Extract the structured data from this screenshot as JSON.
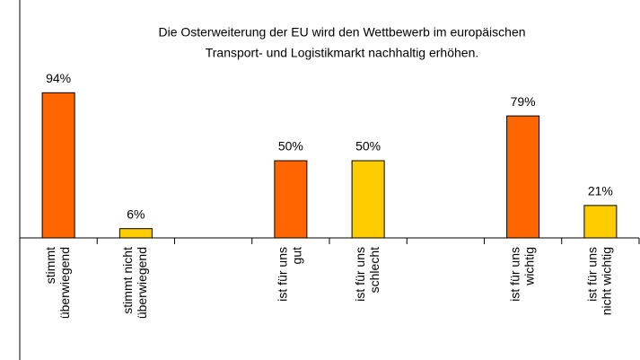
{
  "chart_data": {
    "type": "bar",
    "title": [
      "Die Osterweiterung der EU wird den Wettbewerb im europäischen",
      "Transport- und Logistikmarkt nachhaltig erhöhen."
    ],
    "categories": [
      [
        "stimmt",
        "überwiegend"
      ],
      [
        "stimmt nicht",
        "überwiegend"
      ],
      null,
      [
        "ist für uns",
        "gut"
      ],
      [
        "ist für uns",
        "schlecht"
      ],
      null,
      [
        "ist für uns",
        "wichtig"
      ],
      [
        "ist für uns",
        "nicht wichtig"
      ]
    ],
    "values": [
      94,
      6,
      null,
      50,
      50,
      null,
      79,
      21
    ],
    "value_labels": [
      "94%",
      "6%",
      null,
      "50%",
      "50%",
      null,
      "79%",
      "21%"
    ],
    "colors": [
      "#ff6600",
      "#ffcc00",
      null,
      "#ff6600",
      "#ffcc00",
      null,
      "#ff6600",
      "#ffcc00"
    ],
    "ylim": [
      0,
      100
    ]
  }
}
